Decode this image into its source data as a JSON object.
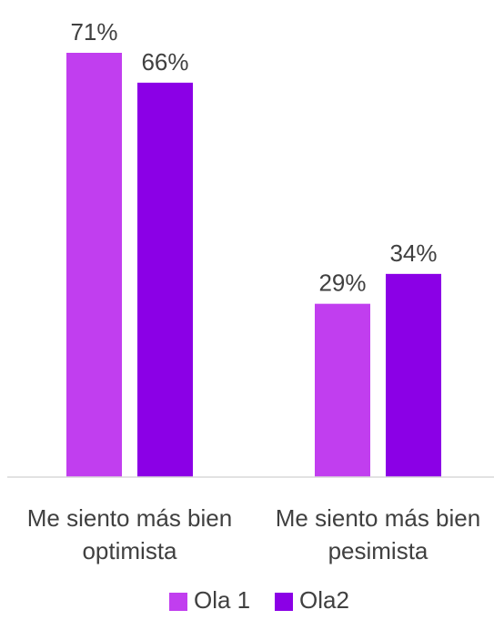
{
  "chart_data": {
    "type": "bar",
    "title": "",
    "xlabel": "",
    "ylabel": "",
    "ylim": [
      0,
      75
    ],
    "categories": [
      [
        "Me siento más bien",
        "optimista"
      ],
      [
        "Me siento más bien",
        "pesimista"
      ]
    ],
    "series": [
      {
        "name": "Ola 1",
        "color": "#C13EEF",
        "values": [
          71,
          29
        ],
        "labels": [
          "71%",
          "29%"
        ]
      },
      {
        "name": "Ola2",
        "color": "#8B00E6",
        "values": [
          66,
          34
        ],
        "labels": [
          "66%",
          "34%"
        ]
      }
    ],
    "grid": false,
    "legend": "bottom",
    "axis_line_color": "#D9D9D9"
  }
}
